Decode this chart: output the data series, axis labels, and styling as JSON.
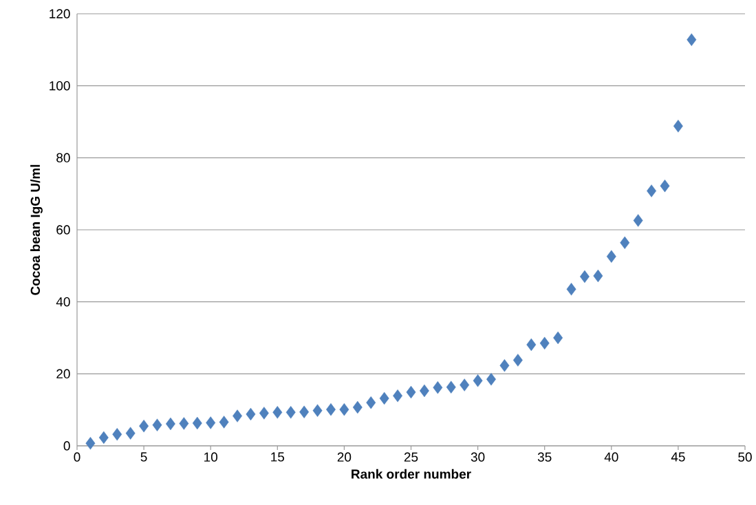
{
  "chart_data": {
    "type": "scatter",
    "xlabel": "Rank order number",
    "ylabel": "Cocoa bean IgG U/ml",
    "x": [
      1,
      2,
      3,
      4,
      5,
      6,
      7,
      8,
      9,
      10,
      11,
      12,
      13,
      14,
      15,
      16,
      17,
      18,
      19,
      20,
      21,
      22,
      23,
      24,
      25,
      26,
      27,
      28,
      29,
      30,
      31,
      32,
      33,
      34,
      35,
      36,
      37,
      38,
      39,
      40,
      41,
      42,
      43,
      44,
      45,
      46
    ],
    "values": [
      0.7,
      2.3,
      3.2,
      3.5,
      5.5,
      5.8,
      6.1,
      6.2,
      6.3,
      6.4,
      6.6,
      8.3,
      8.8,
      9.1,
      9.3,
      9.3,
      9.4,
      9.8,
      10.1,
      10.1,
      10.7,
      12.0,
      13.2,
      13.9,
      14.9,
      15.3,
      16.2,
      16.3,
      16.9,
      18.1,
      18.5,
      22.3,
      23.8,
      28.1,
      28.5,
      30.0,
      43.5,
      47.0,
      47.2,
      52.6,
      56.4,
      62.6,
      70.8,
      72.2,
      88.8,
      112.8
    ],
    "color": "#4f81bd",
    "marker": "diamond",
    "xlim": [
      0,
      50
    ],
    "xticks": [
      0,
      5,
      10,
      15,
      20,
      25,
      30,
      35,
      40,
      45,
      50
    ],
    "ylim": [
      0,
      120
    ],
    "yticks": [
      0,
      20,
      40,
      60,
      80,
      100,
      120
    ],
    "grid": "y"
  }
}
